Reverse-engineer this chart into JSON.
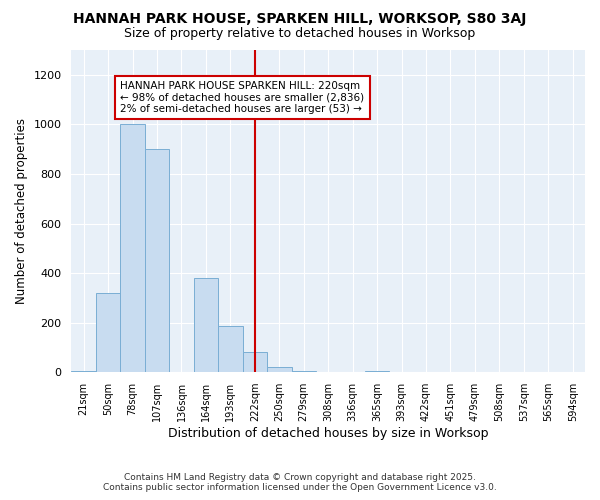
{
  "title": "HANNAH PARK HOUSE, SPARKEN HILL, WORKSOP, S80 3AJ",
  "subtitle": "Size of property relative to detached houses in Worksop",
  "xlabel": "Distribution of detached houses by size in Worksop",
  "ylabel": "Number of detached properties",
  "categories": [
    "21sqm",
    "50sqm",
    "78sqm",
    "107sqm",
    "136sqm",
    "164sqm",
    "193sqm",
    "222sqm",
    "250sqm",
    "279sqm",
    "308sqm",
    "336sqm",
    "365sqm",
    "393sqm",
    "422sqm",
    "451sqm",
    "479sqm",
    "508sqm",
    "537sqm",
    "565sqm",
    "594sqm"
  ],
  "values": [
    5,
    320,
    1000,
    900,
    0,
    380,
    185,
    80,
    20,
    5,
    0,
    0,
    3,
    0,
    0,
    2,
    0,
    0,
    0,
    0,
    0
  ],
  "bar_color": "#c8dcf0",
  "bar_edge_color": "#7aaed4",
  "vline_x_idx": 7,
  "vline_color": "#cc0000",
  "ylim": [
    0,
    1300
  ],
  "yticks": [
    0,
    200,
    400,
    600,
    800,
    1000,
    1200
  ],
  "annotation_text": "HANNAH PARK HOUSE SPARKEN HILL: 220sqm\n← 98% of detached houses are smaller (2,836)\n2% of semi-detached houses are larger (53) →",
  "annotation_box_color": "#ffffff",
  "annotation_box_edge": "#cc0000",
  "plot_bg_color": "#e8f0f8",
  "fig_bg_color": "#ffffff",
  "footer_line1": "Contains HM Land Registry data © Crown copyright and database right 2025.",
  "footer_line2": "Contains public sector information licensed under the Open Government Licence v3.0."
}
